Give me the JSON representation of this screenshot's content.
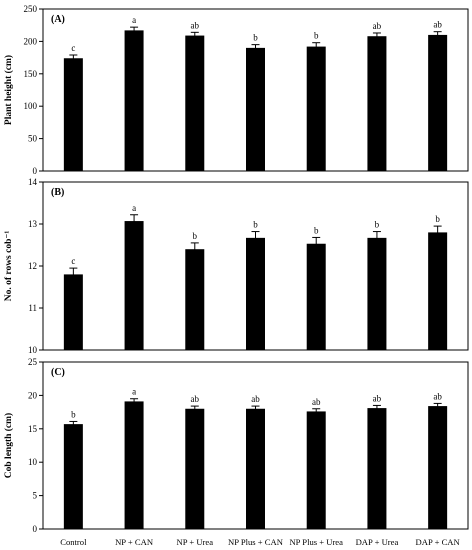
{
  "chart_data": [
    {
      "type": "bar",
      "panel_label": "(A)",
      "categories": [
        "Control",
        "NP + CAN",
        "NP + Urea",
        "NP Plus + CAN",
        "NP Plus + Urea",
        "DAP + Urea",
        "DAP + CAN"
      ],
      "values": [
        174,
        217,
        209,
        190,
        192,
        208,
        210
      ],
      "errors": [
        5,
        5,
        5,
        5,
        6,
        5,
        5
      ],
      "significance": [
        "c",
        "a",
        "ab",
        "b",
        "b",
        "ab",
        "ab"
      ],
      "ylabel": "Plant height (cm)",
      "xlabel": "",
      "ylim": [
        0,
        250
      ],
      "yticks": [
        0,
        50,
        100,
        150,
        200,
        250
      ],
      "show_x_labels": false,
      "grid": false,
      "color": "#000000"
    },
    {
      "type": "bar",
      "panel_label": "(B)",
      "categories": [
        "Control",
        "NP + CAN",
        "NP + Urea",
        "NP Plus + CAN",
        "NP Plus + Urea",
        "DAP + Urea",
        "DAP + CAN"
      ],
      "values": [
        11.8,
        13.07,
        12.4,
        12.67,
        12.53,
        12.67,
        12.8
      ],
      "errors": [
        0.15,
        0.15,
        0.15,
        0.15,
        0.15,
        0.15,
        0.15
      ],
      "significance": [
        "c",
        "a",
        "b",
        "b",
        "b",
        "b",
        "b"
      ],
      "ylabel": "No. of rows cob⁻¹",
      "xlabel": "",
      "ylim": [
        10,
        14
      ],
      "yticks": [
        10,
        11,
        12,
        13,
        14
      ],
      "show_x_labels": false,
      "grid": false,
      "color": "#000000"
    },
    {
      "type": "bar",
      "panel_label": "(C)",
      "categories": [
        "Control",
        "NP + CAN",
        "NP + Urea",
        "NP Plus + CAN",
        "NP Plus + Urea",
        "DAP + Urea",
        "DAP + CAN"
      ],
      "values": [
        15.7,
        19.1,
        18.0,
        18.0,
        17.6,
        18.1,
        18.4
      ],
      "errors": [
        0.4,
        0.4,
        0.4,
        0.4,
        0.4,
        0.4,
        0.4
      ],
      "significance": [
        "b",
        "a",
        "ab",
        "ab",
        "ab",
        "ab",
        "ab"
      ],
      "ylabel": "Cob length (cm)",
      "xlabel": "",
      "ylim": [
        0,
        25
      ],
      "yticks": [
        0,
        5,
        10,
        15,
        20,
        25
      ],
      "show_x_labels": true,
      "grid": false,
      "color": "#000000"
    }
  ]
}
